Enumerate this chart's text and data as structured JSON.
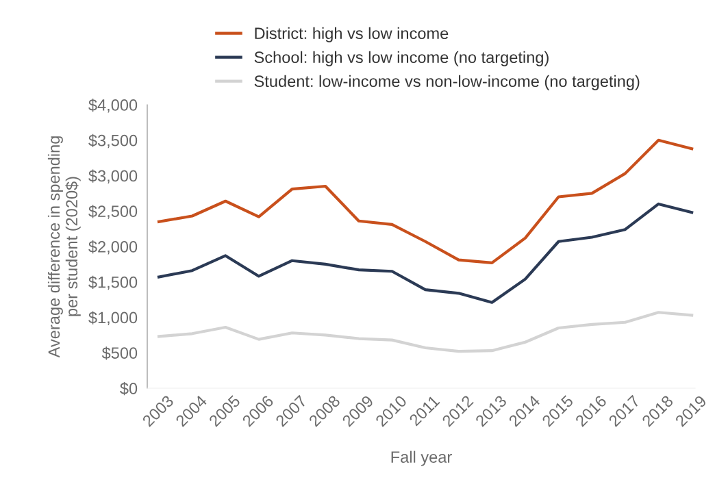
{
  "chart_data": {
    "type": "line",
    "xlabel": "Fall year",
    "ylabel": "Average difference in spending\nper student (2020$)",
    "categories": [
      "2003",
      "2004",
      "2005",
      "2006",
      "2007",
      "2008",
      "2009",
      "2010",
      "2011",
      "2012",
      "2013",
      "2014",
      "2015",
      "2016",
      "2017",
      "2018",
      "2019"
    ],
    "series": [
      {
        "name": "District: high vs low income",
        "color": "#c9501c",
        "values": [
          2350,
          2430,
          2640,
          2420,
          2810,
          2850,
          2360,
          2310,
          2070,
          1810,
          1770,
          2120,
          2700,
          2750,
          3030,
          3500,
          3380
        ]
      },
      {
        "name": "School: high vs low income (no targeting)",
        "color": "#2b3a55",
        "values": [
          1570,
          1660,
          1870,
          1580,
          1800,
          1750,
          1670,
          1650,
          1390,
          1340,
          1210,
          1540,
          2070,
          2130,
          2240,
          2600,
          2480
        ]
      },
      {
        "name": "Student: low-income vs non-low-income (no targeting)",
        "color": "#d3d3d3",
        "values": [
          730,
          770,
          860,
          690,
          780,
          750,
          700,
          680,
          570,
          520,
          530,
          650,
          850,
          900,
          930,
          1070,
          1030
        ]
      }
    ],
    "ylim": [
      0,
      4000
    ],
    "yticks": [
      {
        "value": 0,
        "label": "$0"
      },
      {
        "value": 500,
        "label": "$500"
      },
      {
        "value": 1000,
        "label": "$1,000"
      },
      {
        "value": 1500,
        "label": "$1,500"
      },
      {
        "value": 2000,
        "label": "$2,000"
      },
      {
        "value": 2500,
        "label": "$2,500"
      },
      {
        "value": 3000,
        "label": "$3,000"
      },
      {
        "value": 3500,
        "label": "$3,500"
      },
      {
        "value": 4000,
        "label": "$4,000"
      }
    ],
    "grid": false,
    "legend": "top",
    "line_style": "solid",
    "marker": "none"
  }
}
